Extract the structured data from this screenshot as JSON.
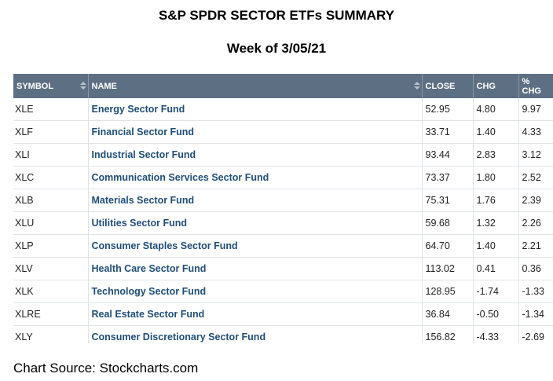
{
  "header": {
    "title": "S&P SPDR SECTOR ETFs SUMMARY",
    "subtitle": "Week of 3/05/21"
  },
  "table": {
    "columns": [
      "SYMBOL",
      "NAME",
      "CLOSE",
      "CHG",
      "% CHG"
    ],
    "rows": [
      [
        "XLE",
        "Energy Sector Fund",
        "52.95",
        "4.80",
        "9.97"
      ],
      [
        "XLF",
        "Financial Sector Fund",
        "33.71",
        "1.40",
        "4.33"
      ],
      [
        "XLI",
        "Industrial Sector Fund",
        "93.44",
        "2.83",
        "3.12"
      ],
      [
        "XLC",
        "Communication Services Sector Fund",
        "73.37",
        "1.80",
        "2.52"
      ],
      [
        "XLB",
        "Materials Sector Fund",
        "75.31",
        "1.76",
        "2.39"
      ],
      [
        "XLU",
        "Utilities Sector Fund",
        "59.68",
        "1.32",
        "2.26"
      ],
      [
        "XLP",
        "Consumer Staples Sector Fund",
        "64.70",
        "1.40",
        "2.21"
      ],
      [
        "XLV",
        "Health Care Sector Fund",
        "113.02",
        "0.41",
        "0.36"
      ],
      [
        "XLK",
        "Technology Sector Fund",
        "128.95",
        "-1.74",
        "-1.33"
      ],
      [
        "XLRE",
        "Real Estate Sector Fund",
        "36.84",
        "-0.50",
        "-1.34"
      ],
      [
        "XLY",
        "Consumer Discretionary Sector Fund",
        "156.82",
        "-4.33",
        "-2.69"
      ]
    ]
  },
  "footer": {
    "source": "Chart Source: Stockcharts.com"
  }
}
